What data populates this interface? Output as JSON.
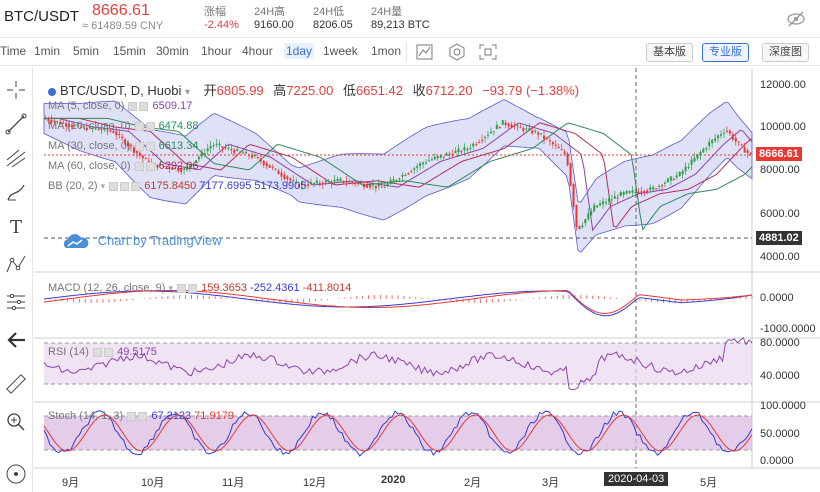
{
  "header": {
    "pair": "BTC/USDT",
    "price": "8666.61",
    "cny": "≈ 61489.59 CNY",
    "change_label": "涨幅",
    "change_value": "-2.44%",
    "high_label": "24H高",
    "high_value": "9160.00",
    "low_label": "24H低",
    "low_value": "8206.05",
    "vol_label": "24H量",
    "vol_value": "89,213 BTC",
    "theme_icon": "no-eye-icon"
  },
  "toolbar": {
    "intervals": [
      "Time",
      "1min",
      "5min",
      "15min",
      "30min",
      "1hour",
      "4hour",
      "1day",
      "1week",
      "1mon"
    ],
    "active_interval": "1day",
    "versions": [
      "基本版",
      "专业版",
      "深度图"
    ],
    "active_version": "专业版"
  },
  "sidebar": {
    "tools": [
      "crosshair-icon",
      "trendline-icon",
      "fork-icon",
      "brush-icon",
      "text-icon",
      "pattern-icon",
      "fib-icon",
      "back-arrow-icon",
      "ruler-icon",
      "zoom-icon",
      "anchor-icon"
    ]
  },
  "main": {
    "title": "BTC/USDT, D, Huobi",
    "ohlc": {
      "open_label": "开",
      "open": "6805.99",
      "high_label": "高",
      "high": "7225.00",
      "low_label": "低",
      "low": "6651.42",
      "close_label": "收",
      "close": "6712.20",
      "change": "−93.79 (−1.38%)"
    },
    "indicators": [
      {
        "label": "MA (5, close, 0)",
        "value": "6509.17",
        "color": "#8e44ad"
      },
      {
        "label": "MA (10, close, 0)",
        "value": "6474.88",
        "color": "#1a8f6a"
      },
      {
        "label": "MA (30, close, 0)",
        "value": "6613.34",
        "color": "#2e8b57"
      },
      {
        "label": "MA (60, close, 0)",
        "value": "6292.06",
        "color": "#b03060"
      }
    ],
    "bb": {
      "label": "BB (20, 2)",
      "v1": "6175.8450",
      "v2": "7177.6995",
      "v3": "5173.9905"
    },
    "watermark": "Chart by TradingView",
    "price_axis": [
      "12000.00",
      "10000.00",
      "8000.00",
      "6000.00",
      "4000.00"
    ],
    "price_tag": "8666.61",
    "line_tag": "4881.02"
  },
  "macd": {
    "label": "MACD (12, 26, close, 9)",
    "v1": "159.3653",
    "v2": "-252.4361",
    "v3": "-411.8014",
    "axis": [
      "0.0000",
      "-1000.0000"
    ]
  },
  "rsi": {
    "label": "RSI (14)",
    "value": "49.5175",
    "axis": [
      "80.0000",
      "40.0000"
    ]
  },
  "stoch": {
    "label": "Stoch (14, 1, 3)",
    "v1": "67.2123",
    "v2": "71.9179",
    "axis": [
      "100.0000",
      "50.0000",
      "0.0000"
    ]
  },
  "xaxis": [
    "9月",
    "10月",
    "11月",
    "12月",
    "2020",
    "2月",
    "3月",
    "2020-04-03",
    "5月"
  ],
  "colors": {
    "up": "#2ea043",
    "down": "#e53935",
    "accent": "#3a6fd0",
    "bb_fill": "#c5c8f0"
  }
}
